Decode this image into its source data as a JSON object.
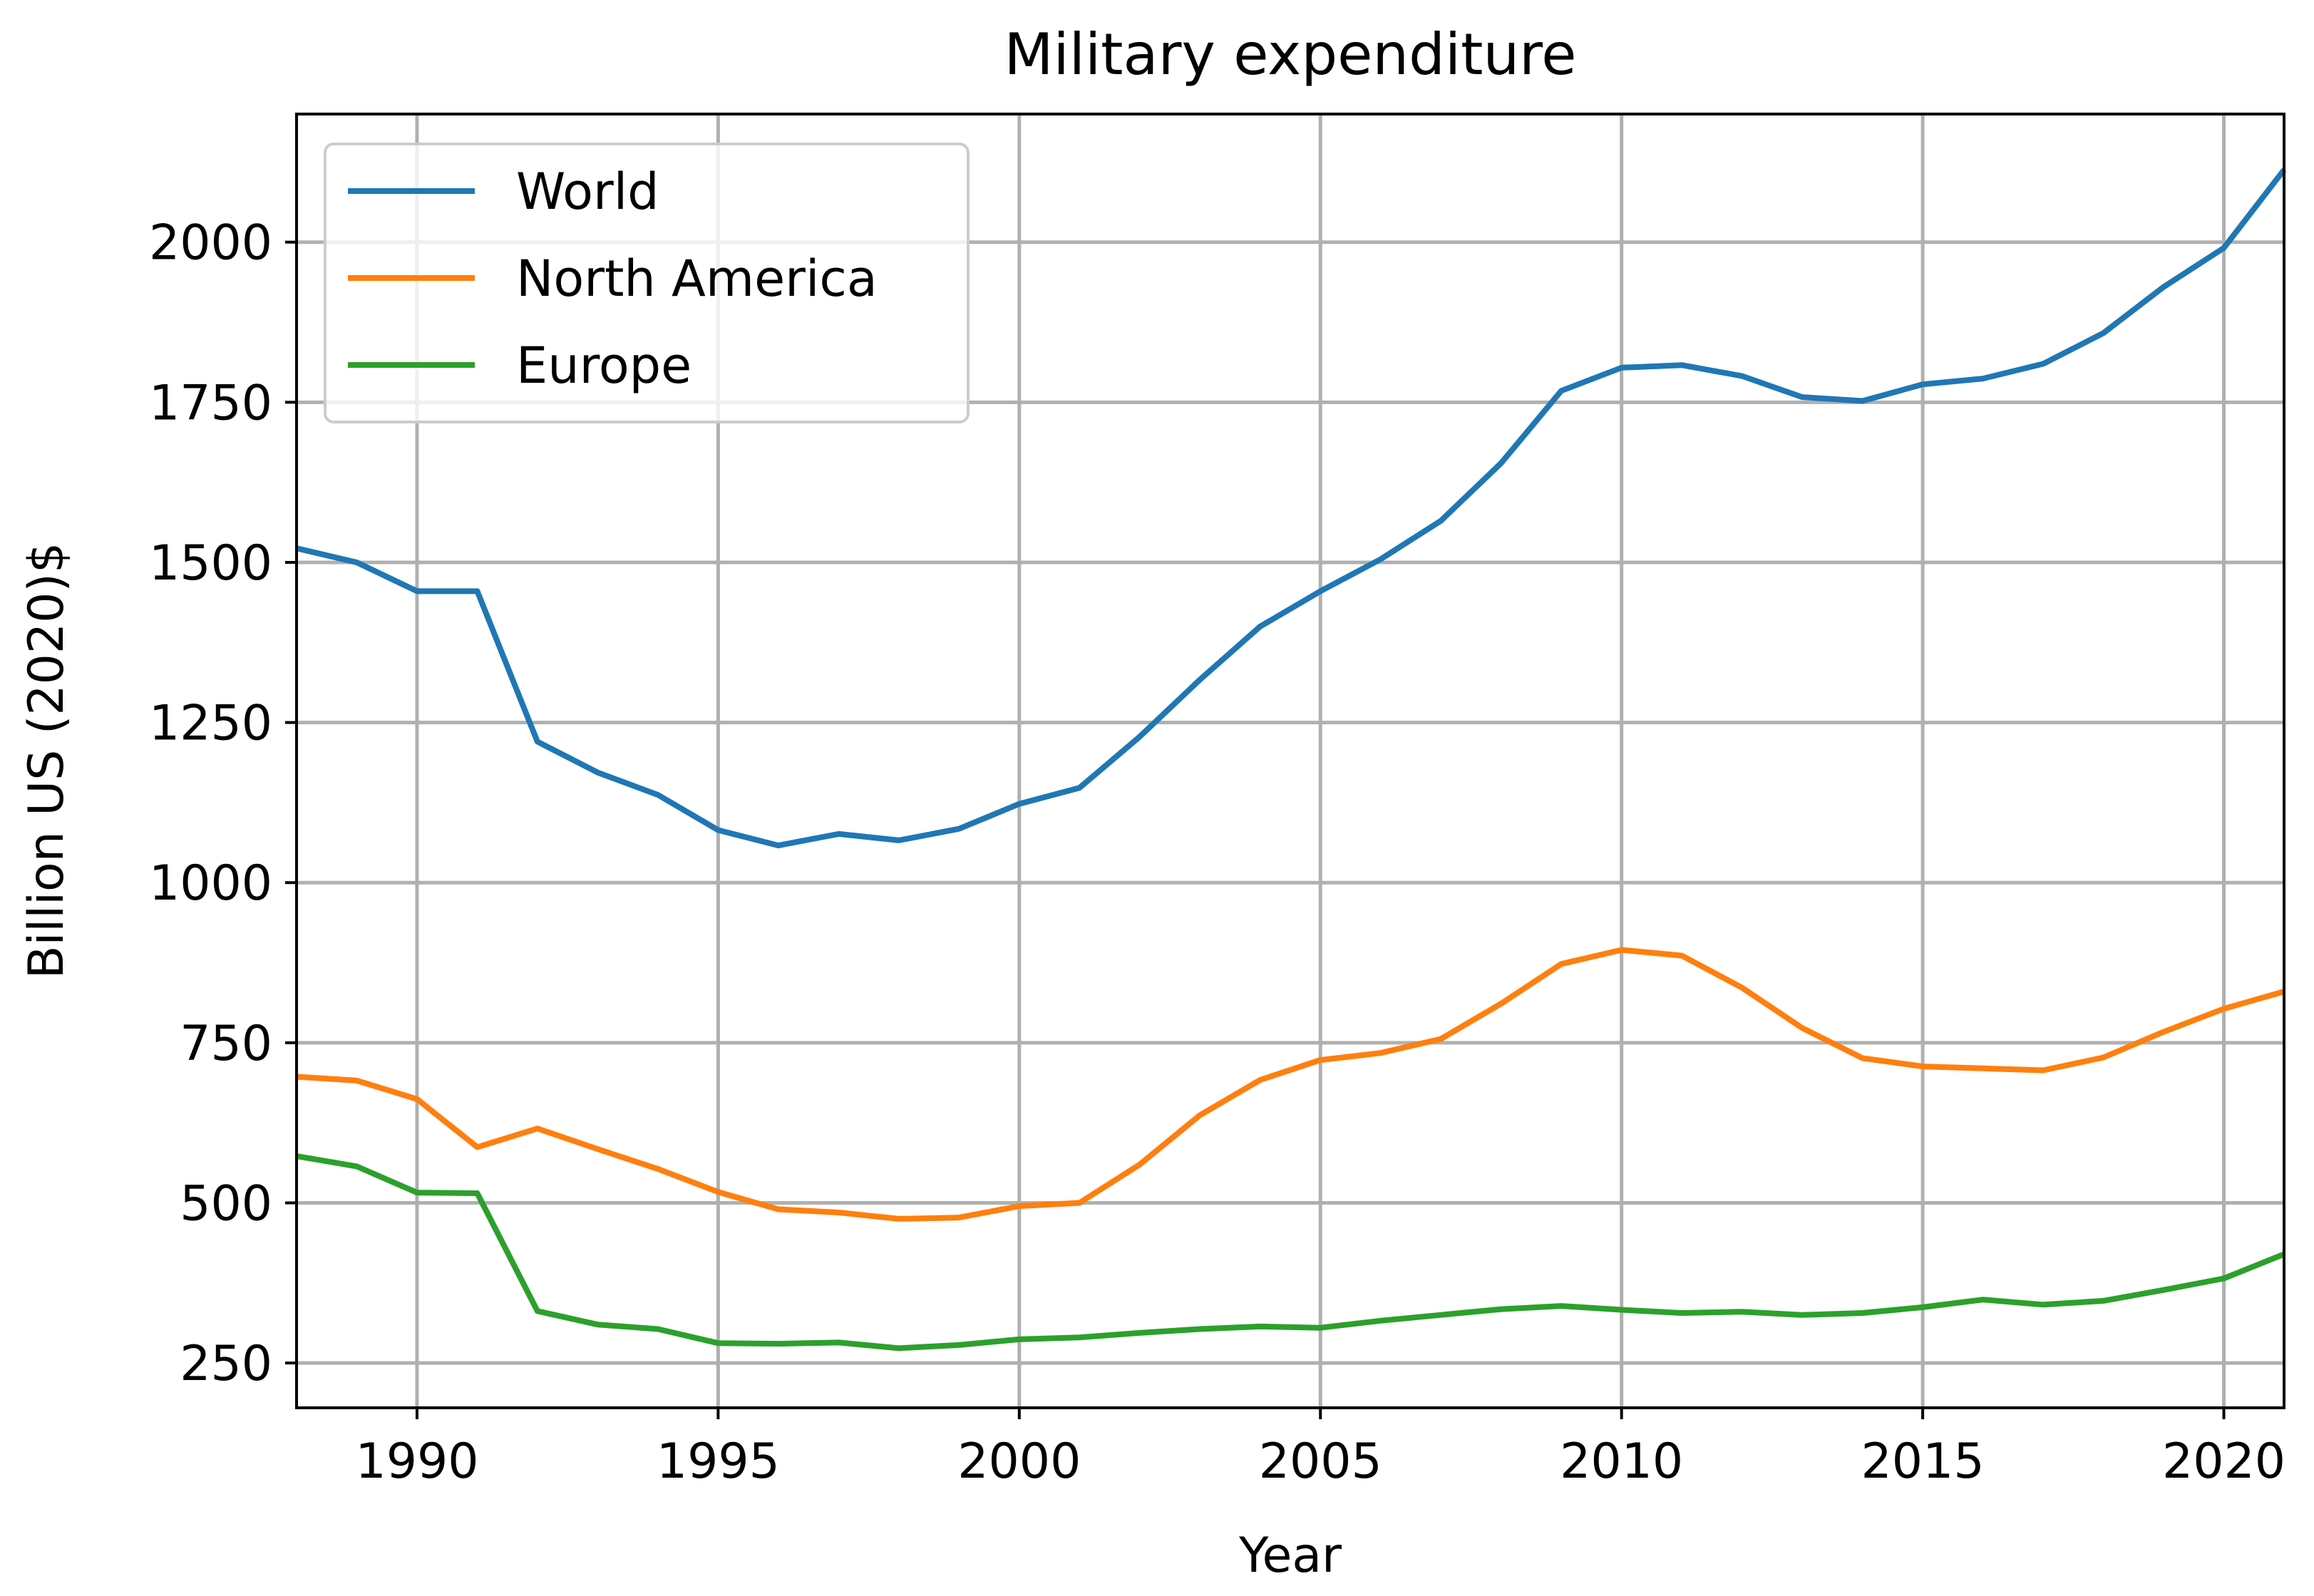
{
  "chart_data": {
    "type": "line",
    "title": "Military expenditure",
    "xlabel": "Year",
    "ylabel": "Billion US (2020)$",
    "xlim": [
      1988,
      2021
    ],
    "ylim": [
      180,
      2200
    ],
    "xticks": [
      1990,
      1995,
      2000,
      2005,
      2010,
      2015,
      2020
    ],
    "yticks": [
      250,
      500,
      750,
      1000,
      1250,
      1500,
      1750,
      2000
    ],
    "grid": true,
    "legend_position": "upper-left",
    "x": [
      1988,
      1989,
      1990,
      1991,
      1992,
      1993,
      1994,
      1995,
      1996,
      1997,
      1998,
      1999,
      2000,
      2001,
      2002,
      2003,
      2004,
      2005,
      2006,
      2007,
      2008,
      2009,
      2010,
      2011,
      2012,
      2013,
      2014,
      2015,
      2016,
      2017,
      2018,
      2019,
      2020,
      2021
    ],
    "series": [
      {
        "name": "World",
        "color": "#1f77b4",
        "values": [
          1522,
          1500,
          1455,
          1455,
          1220,
          1172,
          1137,
          1082,
          1058,
          1076,
          1066,
          1084,
          1123,
          1148,
          1228,
          1317,
          1400,
          1455,
          1505,
          1565,
          1655,
          1768,
          1804,
          1808,
          1791,
          1758,
          1752,
          1778,
          1787,
          1810,
          1858,
          1930,
          1991,
          2113
        ]
      },
      {
        "name": "North America",
        "color": "#ff7f0e",
        "values": [
          697,
          691,
          662,
          587,
          616,
          584,
          553,
          517,
          490,
          485,
          475,
          477,
          495,
          500,
          560,
          637,
          692,
          723,
          734,
          756,
          811,
          873,
          895,
          886,
          836,
          773,
          726,
          713,
          710,
          707,
          727,
          767,
          803,
          830
        ]
      },
      {
        "name": "Europe",
        "color": "#2ca02c",
        "values": [
          573,
          557,
          516,
          515,
          331,
          310,
          303,
          281,
          280,
          282,
          273,
          278,
          287,
          290,
          297,
          303,
          307,
          305,
          316,
          325,
          334,
          339,
          333,
          328,
          330,
          325,
          328,
          337,
          349,
          341,
          347,
          364,
          382,
          420
        ]
      }
    ]
  }
}
